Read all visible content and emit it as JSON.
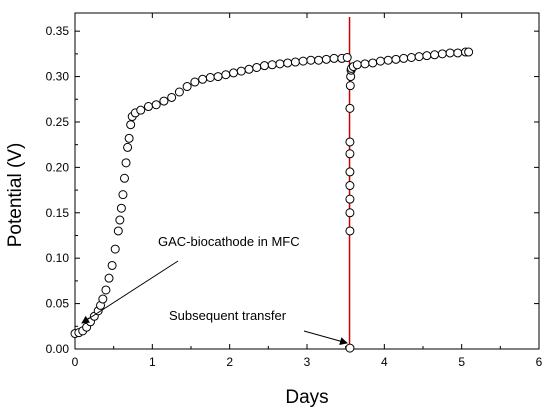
{
  "chart_data": {
    "type": "scatter",
    "title": "",
    "xlabel": "Days",
    "ylabel": "Potential (V)",
    "xlim": [
      0,
      6
    ],
    "ylim": [
      0,
      0.37
    ],
    "x_ticks": [
      0,
      1,
      2,
      3,
      4,
      5,
      6
    ],
    "y_ticks": [
      "0.00",
      "0.05",
      "0.10",
      "0.15",
      "0.20",
      "0.25",
      "0.30",
      "0.35"
    ],
    "grid": false,
    "legend": "none",
    "marker": "open-circle",
    "marker_color": "#000000",
    "series": [
      {
        "x": [
          0,
          0.05,
          0.1,
          0.15,
          0.2,
          0.25,
          0.3,
          0.33,
          0.36,
          0.4,
          0.44,
          0.48,
          0.52,
          0.56,
          0.58,
          0.6,
          0.62,
          0.64,
          0.66,
          0.68,
          0.7,
          0.72,
          0.74,
          0.78,
          0.85,
          0.95,
          1.05,
          1.15,
          1.25,
          1.35,
          1.45,
          1.55,
          1.65,
          1.75,
          1.85,
          1.95,
          2.05,
          2.15,
          2.25,
          2.35,
          2.45,
          2.55,
          2.65,
          2.75,
          2.85,
          2.95,
          3.05,
          3.15,
          3.25,
          3.35,
          3.45,
          3.52,
          3.555,
          3.555,
          3.555,
          3.555,
          3.555,
          3.555,
          3.555,
          3.555,
          3.555,
          3.56,
          3.565,
          3.57,
          3.575,
          3.6,
          3.65,
          3.75,
          3.85,
          3.95,
          4.05,
          4.15,
          4.25,
          4.35,
          4.45,
          4.55,
          4.65,
          4.75,
          4.85,
          4.95,
          5.05,
          5.09
        ],
        "y": [
          0.017,
          0.018,
          0.02,
          0.024,
          0.03,
          0.036,
          0.042,
          0.048,
          0.055,
          0.065,
          0.078,
          0.092,
          0.11,
          0.13,
          0.142,
          0.155,
          0.17,
          0.188,
          0.205,
          0.222,
          0.232,
          0.247,
          0.256,
          0.26,
          0.263,
          0.267,
          0.269,
          0.273,
          0.277,
          0.283,
          0.289,
          0.294,
          0.297,
          0.299,
          0.3,
          0.302,
          0.304,
          0.306,
          0.308,
          0.31,
          0.312,
          0.313,
          0.314,
          0.315,
          0.316,
          0.317,
          0.318,
          0.318,
          0.319,
          0.32,
          0.32,
          0.321,
          0.001,
          0.13,
          0.15,
          0.165,
          0.18,
          0.195,
          0.215,
          0.228,
          0.265,
          0.29,
          0.3,
          0.307,
          0.309,
          0.311,
          0.313,
          0.314,
          0.315,
          0.317,
          0.318,
          0.319,
          0.32,
          0.321,
          0.322,
          0.323,
          0.324,
          0.325,
          0.326,
          0.326,
          0.327,
          0.327
        ]
      }
    ],
    "reference_line": {
      "x": 3.55,
      "color": "#cc0000"
    },
    "annotations": [
      {
        "text": "GAC-biocathode in MFC",
        "points_to": [
          0.05,
          0.02
        ]
      },
      {
        "text": "Subsequent transfer",
        "points_to": [
          3.54,
          0.005
        ]
      }
    ]
  }
}
